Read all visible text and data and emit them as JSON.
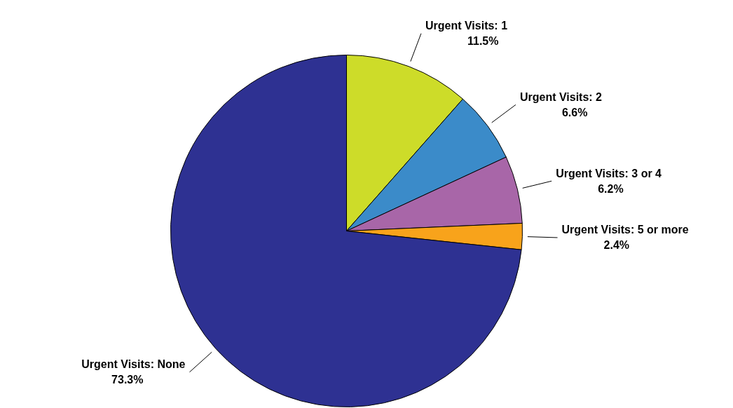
{
  "chart_data": {
    "type": "pie",
    "categories": [
      "Urgent Visits: 1",
      "Urgent Visits: 2",
      "Urgent Visits: 3 or 4",
      "Urgent Visits: 5 or more",
      "Urgent Visits: None"
    ],
    "values": [
      11.5,
      6.6,
      6.2,
      2.4,
      73.3
    ],
    "value_labels": [
      "11.5%",
      "6.6%",
      "6.2%",
      "2.4%",
      "73.3%"
    ],
    "colors": [
      "#cddc29",
      "#3b8bc9",
      "#a866a8",
      "#f8a31b",
      "#2e3192"
    ]
  }
}
